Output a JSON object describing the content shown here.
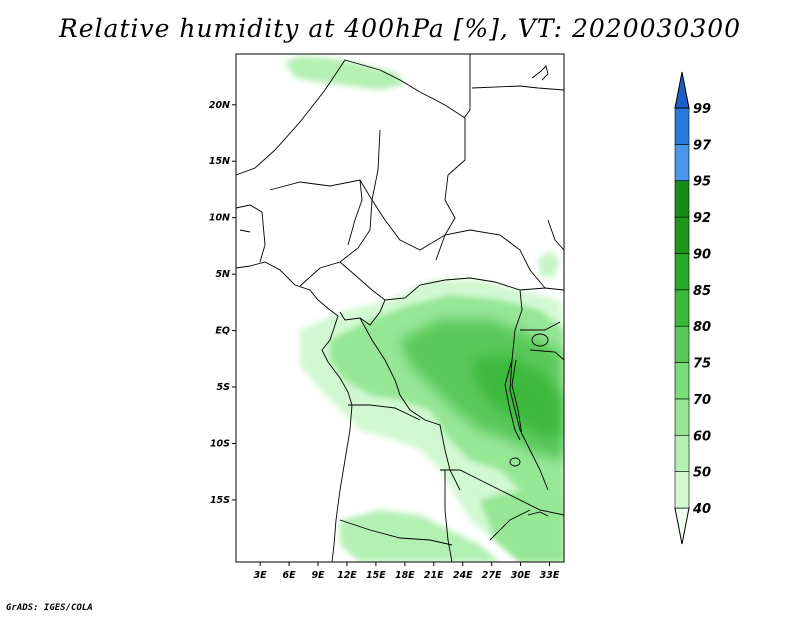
{
  "title": "Relative humidity at 400hPa [%], VT: 2020030300",
  "footer": "GrADS: IGES/COLA",
  "map": {
    "lat_labels": [
      {
        "lat": 20,
        "text": "20N"
      },
      {
        "lat": 15,
        "text": "15N"
      },
      {
        "lat": 10,
        "text": "10N"
      },
      {
        "lat": 5,
        "text": "5N"
      },
      {
        "lat": 0,
        "text": "EQ"
      },
      {
        "lat": -5,
        "text": "5S"
      },
      {
        "lat": -10,
        "text": "10S"
      },
      {
        "lat": -15,
        "text": "15S"
      }
    ],
    "lon_labels": [
      {
        "lon": 3,
        "text": "3E"
      },
      {
        "lon": 6,
        "text": "6E"
      },
      {
        "lon": 9,
        "text": "9E"
      },
      {
        "lon": 12,
        "text": "12E"
      },
      {
        "lon": 15,
        "text": "15E"
      },
      {
        "lon": 18,
        "text": "18E"
      },
      {
        "lon": 21,
        "text": "21E"
      },
      {
        "lon": 24,
        "text": "24E"
      },
      {
        "lon": 27,
        "text": "27E"
      },
      {
        "lon": 30,
        "text": "30E"
      },
      {
        "lon": 33,
        "text": "33E"
      }
    ],
    "lon_range": [
      0.5,
      34.5
    ],
    "lat_range": [
      -20.5,
      24.5
    ]
  },
  "colorbar": {
    "levels": [
      "40",
      "50",
      "60",
      "70",
      "75",
      "80",
      "85",
      "90",
      "92",
      "95",
      "97",
      "99"
    ],
    "colors": [
      "#f0fff0",
      "#d2f8d2",
      "#b4f0b4",
      "#96e696",
      "#78dc78",
      "#5ac85a",
      "#3cb93c",
      "#28aa28",
      "#1e961e",
      "#1a8a1a",
      "#4a96e8",
      "#2a78dc",
      "#1c5ec8"
    ]
  }
}
